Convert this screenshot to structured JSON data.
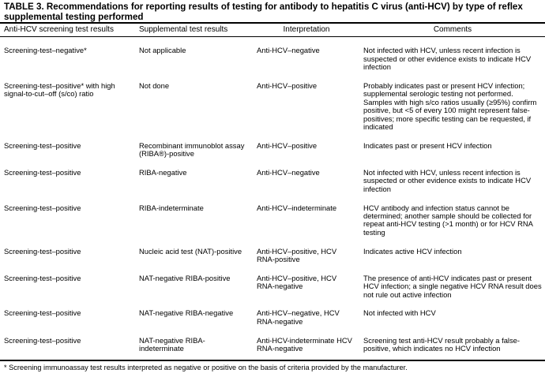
{
  "title": "TABLE 3. Recommendations for reporting results of testing for antibody to hepatitis C virus (anti-HCV) by type of reflex supplemental testing performed",
  "headers": [
    "Anti-HCV screening test results",
    "Supplemental test results",
    "Interpretation",
    "Comments"
  ],
  "rows": [
    {
      "screening": "Screening-test–negative*",
      "supplemental": "Not applicable",
      "interpretation": "Anti-HCV–negative",
      "comments": "Not infected with HCV, unless recent infection is suspected or other evidence exists to indicate HCV infection"
    },
    {
      "screening": "Screening-test–positive* with high signal-to-cut–off (s/co) ratio",
      "supplemental": "Not done",
      "interpretation": "Anti-HCV–positive",
      "comments": "Probably indicates past or present HCV infection; supplemental serologic testing not performed. Samples with high s/co ratios usually (≥95%) confirm positive, but <5 of every 100 might represent false-positives; more specific testing can be requested, if indicated"
    },
    {
      "screening": "Screening-test–positive",
      "supplemental": "Recombinant immunoblot assay (RIBA®)-positive",
      "interpretation": "Anti-HCV–positive",
      "comments": "Indicates past or present HCV infection"
    },
    {
      "screening": "Screening-test–positive",
      "supplemental": "RIBA-negative",
      "interpretation": "Anti-HCV–negative",
      "comments": "Not infected with HCV, unless recent infection is suspected or other evidence exists to indicate HCV infection"
    },
    {
      "screening": "Screening-test–positive",
      "supplemental": "RIBA-indeterminate",
      "interpretation": "Anti-HCV–indeterminate",
      "comments": "HCV antibody and infection status cannot be determined; another sample should be collected for repeat anti-HCV testing (>1 month) or for HCV RNA testing"
    },
    {
      "screening": "Screening-test–positive",
      "supplemental": "Nucleic acid test (NAT)-positive",
      "interpretation": "Anti-HCV–positive, HCV RNA-positive",
      "comments": "Indicates active HCV infection"
    },
    {
      "screening": "Screening-test–positive",
      "supplemental": "NAT-negative RIBA-positive",
      "interpretation": "Anti-HCV–positive, HCV RNA-negative",
      "comments": "The presence of anti-HCV indicates past or present HCV infection; a single negative HCV RNA result does not rule out active infection"
    },
    {
      "screening": "Screening-test–positive",
      "supplemental": "NAT-negative RIBA-negative",
      "interpretation": "Anti-HCV–negative, HCV RNA-negative",
      "comments": "Not infected with HCV"
    },
    {
      "screening": "Screening-test–positive",
      "supplemental": "NAT-negative RIBA-indeterminate",
      "interpretation": "Anti-HCV-indeterminate HCV RNA-negative",
      "comments": "Screening test anti-HCV result probably a false-positive, which indicates no HCV infection"
    }
  ],
  "footnote": "* Screening immunoassay test results interpreted as negative or positive on the basis of criteria provided by the manufacturer."
}
